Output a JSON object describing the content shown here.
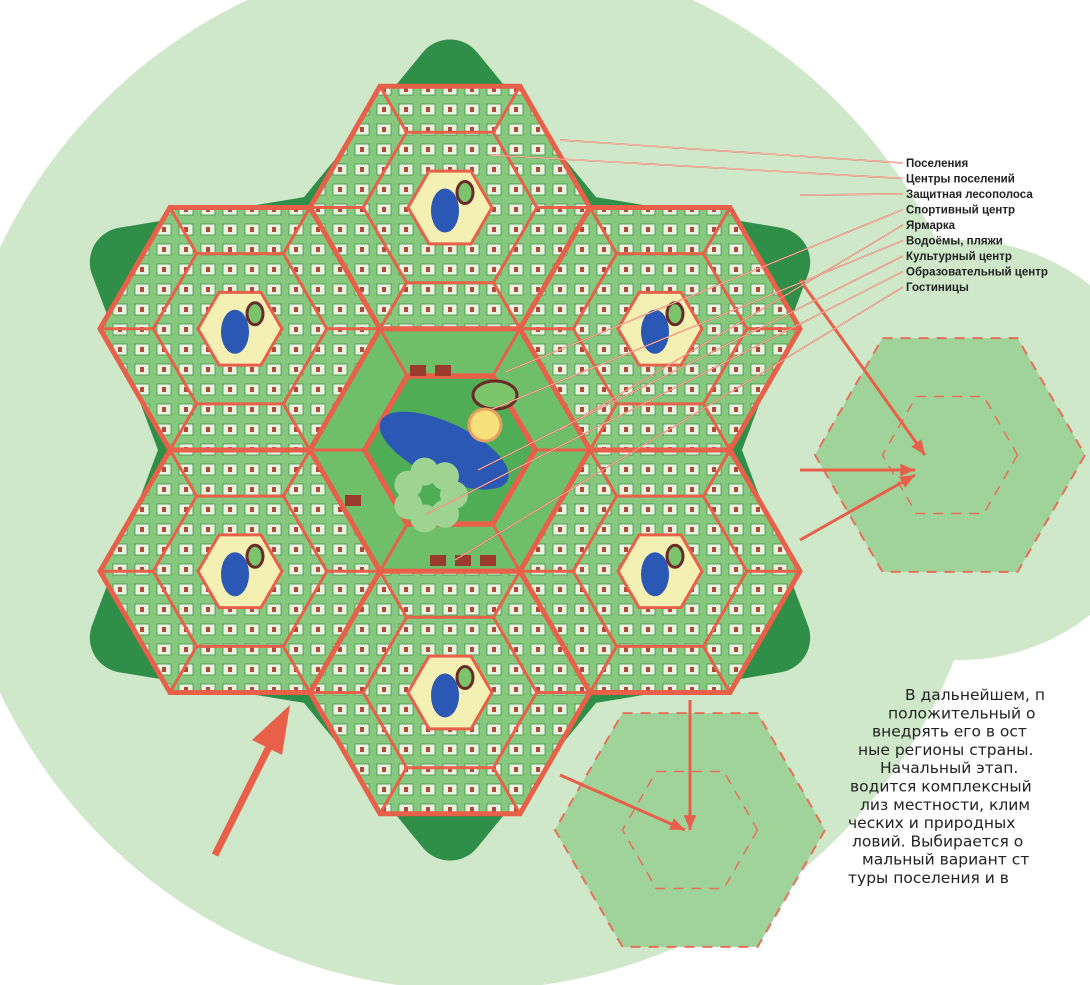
{
  "legend": {
    "items": [
      "Поселения",
      "Центры поселений",
      "Защитная лесополоса",
      "Спортивный центр",
      "Ярмарка",
      "Водоёмы, пляжи",
      "Культурный центр",
      "Образовательный центр",
      "Гостиницы"
    ]
  },
  "text": {
    "lines": [
      "В дальнейшем, п",
      "положительный о",
      "внедрять его в ост",
      "ные регионы страны.",
      "Начальный этап.",
      "водится комплексный",
      "лиз местности, клим",
      "ческих и природных",
      "ловий. Выбирается о",
      "мальный вариант ст",
      "туры поселения и в"
    ]
  }
}
